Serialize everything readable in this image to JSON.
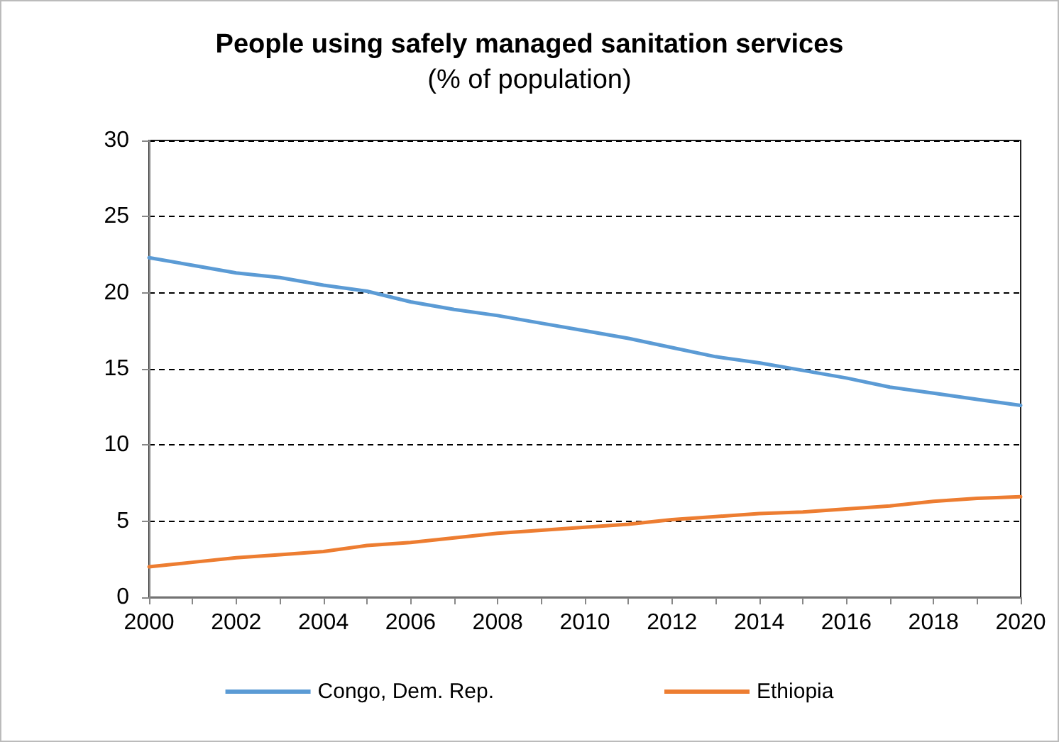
{
  "chart_data": {
    "type": "line",
    "title": "People using safely managed sanitation services",
    "subtitle": "(% of population)",
    "x": [
      2000,
      2001,
      2002,
      2003,
      2004,
      2005,
      2006,
      2007,
      2008,
      2009,
      2010,
      2011,
      2012,
      2013,
      2014,
      2015,
      2016,
      2017,
      2018,
      2019,
      2020
    ],
    "series": [
      {
        "name": "Congo, Dem. Rep.",
        "color": "#5b9bd5",
        "values": [
          22.3,
          21.8,
          21.3,
          21.0,
          20.5,
          20.1,
          19.4,
          18.9,
          18.5,
          18.0,
          17.5,
          17.0,
          16.4,
          15.8,
          15.4,
          14.9,
          14.4,
          13.8,
          13.4,
          13.0,
          12.6
        ]
      },
      {
        "name": "Ethiopia",
        "color": "#ed7d31",
        "values": [
          2.0,
          2.3,
          2.6,
          2.8,
          3.0,
          3.4,
          3.6,
          3.9,
          4.2,
          4.4,
          4.6,
          4.8,
          5.1,
          5.3,
          5.5,
          5.6,
          5.8,
          6.0,
          6.3,
          6.5,
          6.6
        ]
      }
    ],
    "xlim": [
      2000,
      2020
    ],
    "xticks": [
      2000,
      {
        "value": 2001,
        "label": null
      },
      2002,
      {
        "value": 2003,
        "label": null
      },
      2004,
      {
        "value": 2005,
        "label": null
      },
      2006,
      {
        "value": 2007,
        "label": null
      },
      2008,
      {
        "value": 2009,
        "label": null
      },
      2010,
      {
        "value": 2011,
        "label": null
      },
      2012,
      {
        "value": 2013,
        "label": null
      },
      2014,
      {
        "value": 2015,
        "label": null
      },
      2016,
      {
        "value": 2017,
        "label": null
      },
      2018,
      {
        "value": 2019,
        "label": null
      },
      2020
    ],
    "ylim": [
      0,
      30
    ],
    "yticks": [
      0,
      5,
      10,
      15,
      20,
      25,
      30
    ],
    "grid": "y",
    "legend": "bottom",
    "marker": "none",
    "line_style": "solid"
  }
}
